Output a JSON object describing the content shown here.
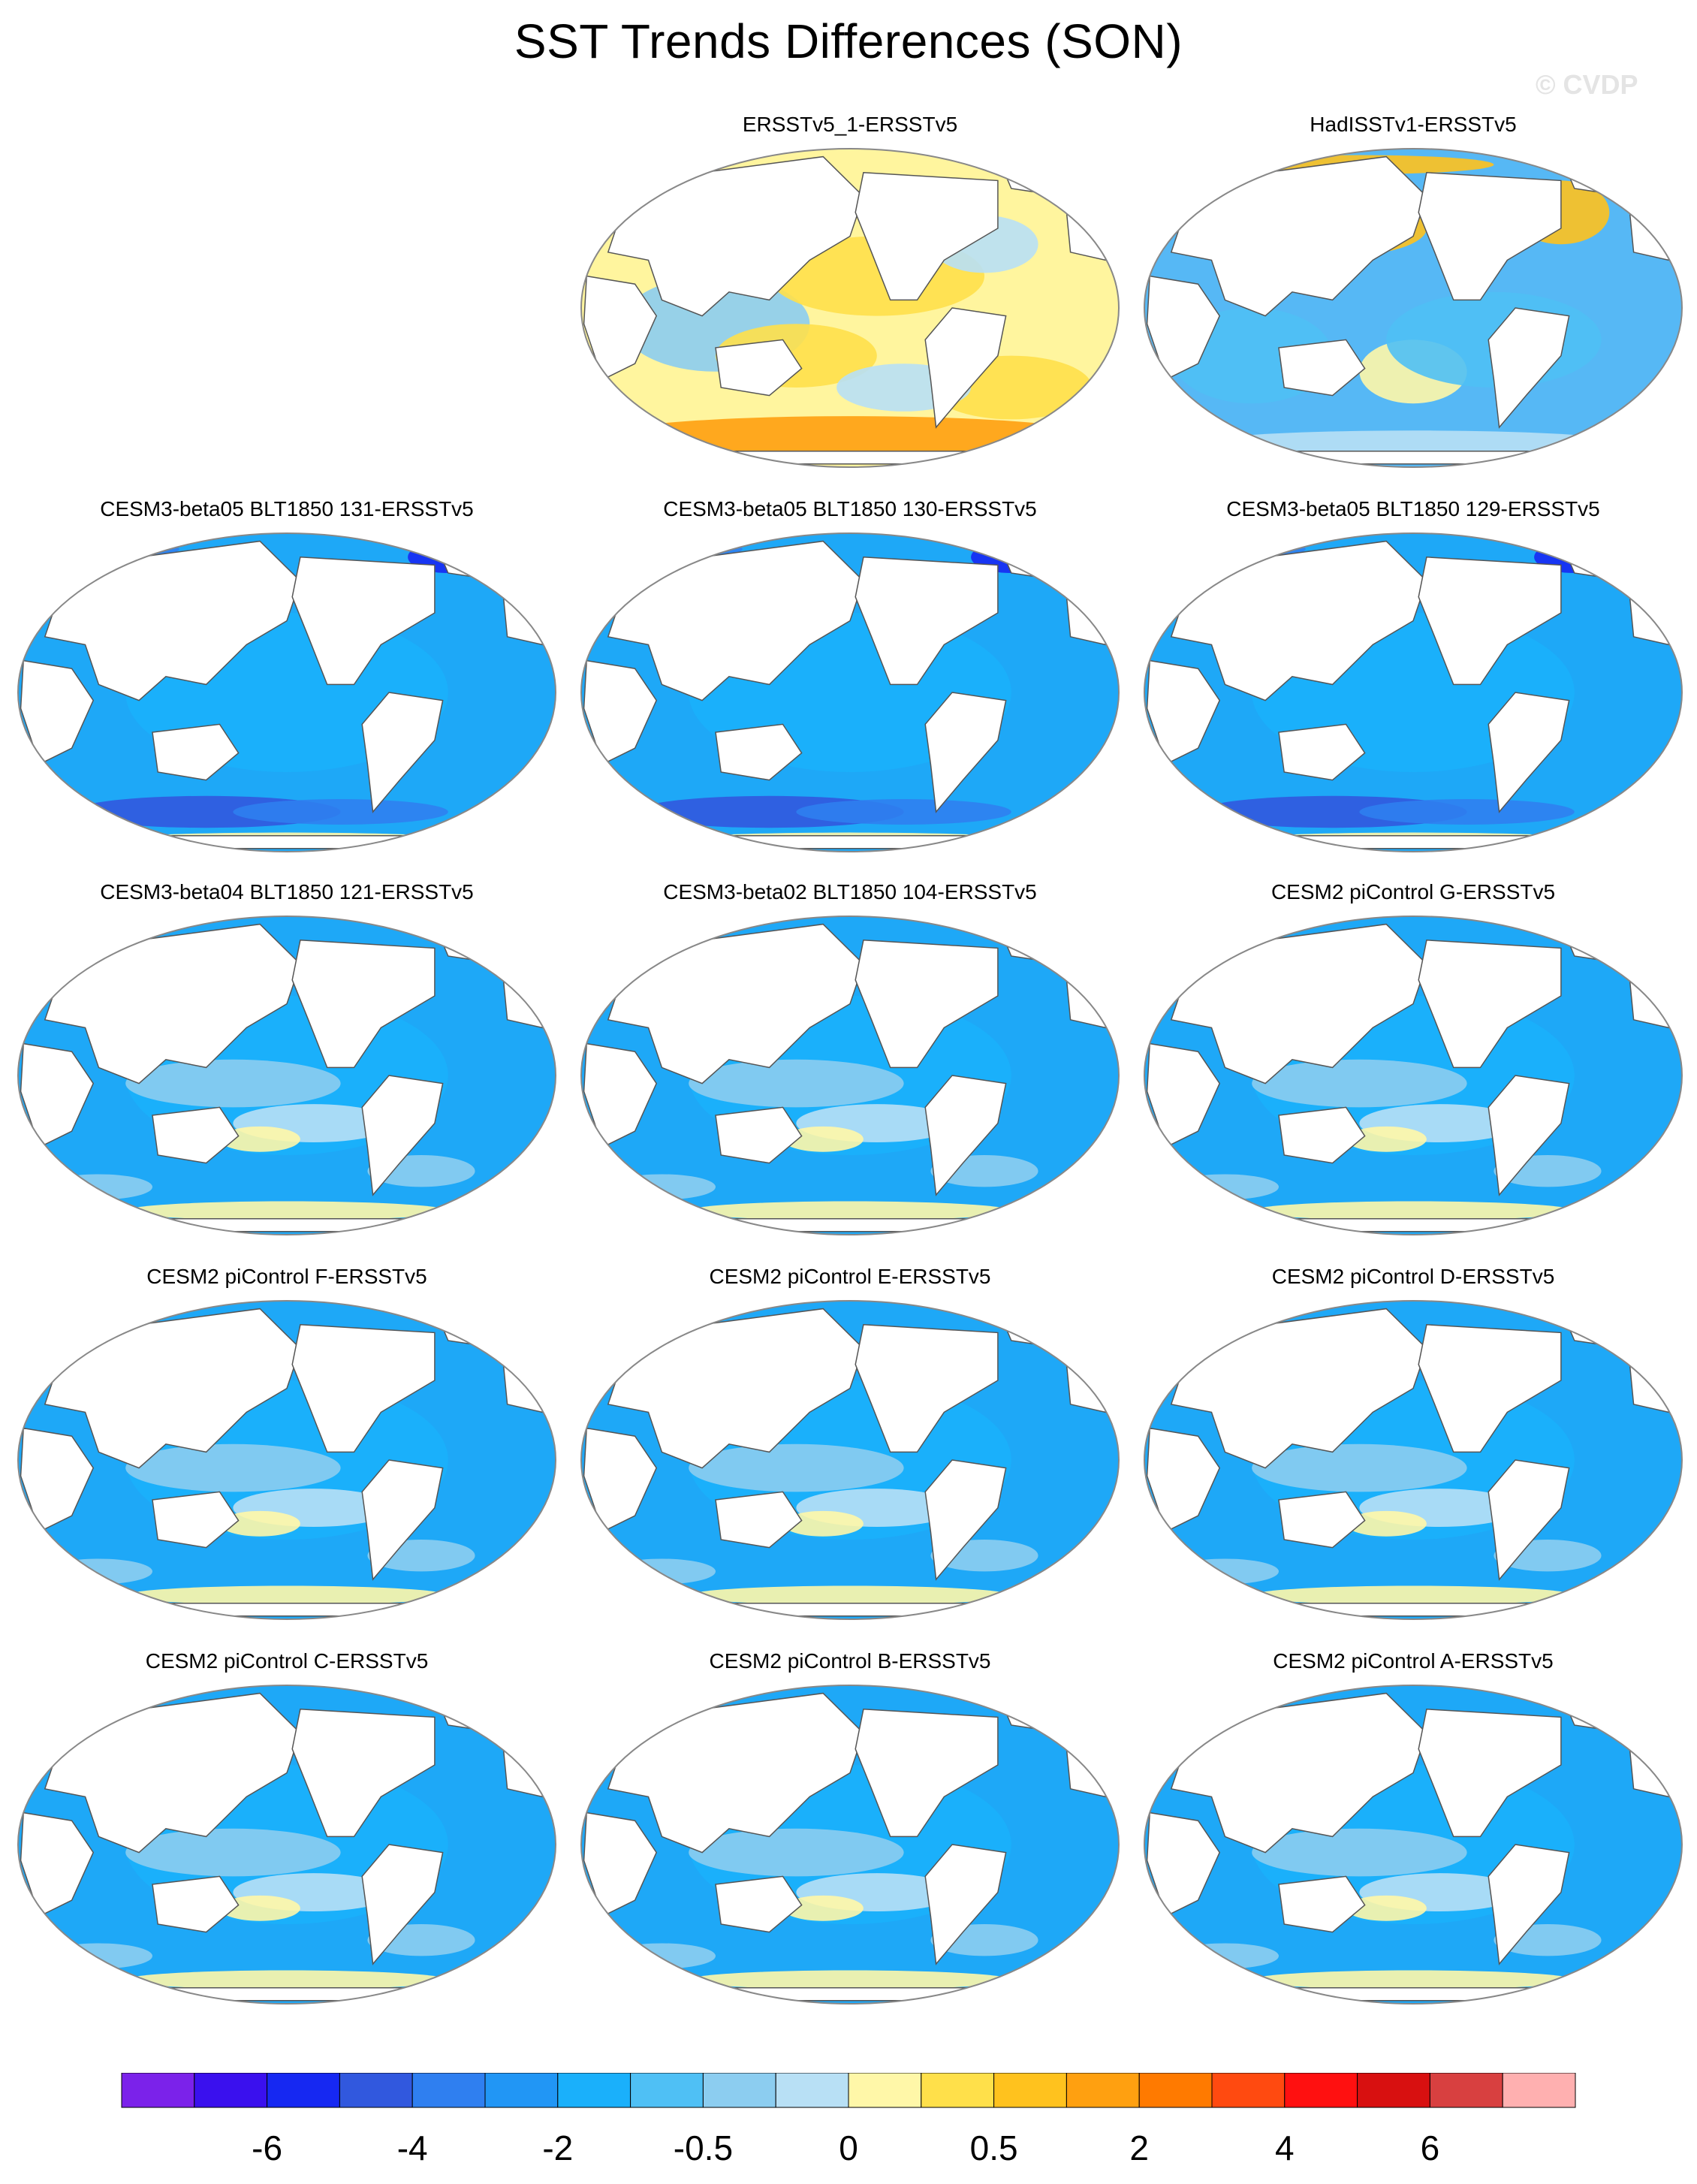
{
  "title": "SST Trends Differences (SON)",
  "watermark": "© CVDP",
  "colors": {
    "land": "#ffffff",
    "coast": "#555555",
    "outline": "#888888"
  },
  "panels": [
    {
      "title": "ERSSTv5_1-ERSSTv5",
      "base": "#fff59e",
      "pattern": "warm-yellow"
    },
    {
      "title": "HadISSTv1-ERSSTv5",
      "base": "#56b8f5",
      "pattern": "mixed"
    },
    {
      "title": "CESM3-beta05 BLT1850 131-ERSSTv5",
      "base": "#1ea8f7",
      "pattern": "cold"
    },
    {
      "title": "CESM3-beta05 BLT1850 130-ERSSTv5",
      "base": "#1ea8f7",
      "pattern": "cold"
    },
    {
      "title": "CESM3-beta05 BLT1850 129-ERSSTv5",
      "base": "#1ea8f7",
      "pattern": "cold"
    },
    {
      "title": "CESM3-beta04 BLT1850 121-ERSSTv5",
      "base": "#1ea8f7",
      "pattern": "cool"
    },
    {
      "title": "CESM3-beta02 BLT1850 104-ERSSTv5",
      "base": "#1ea8f7",
      "pattern": "cool"
    },
    {
      "title": "CESM2 piControl G-ERSSTv5",
      "base": "#1ea8f7",
      "pattern": "cool"
    },
    {
      "title": "CESM2 piControl F-ERSSTv5",
      "base": "#1ea8f7",
      "pattern": "cool"
    },
    {
      "title": "CESM2 piControl E-ERSSTv5",
      "base": "#1ea8f7",
      "pattern": "cool"
    },
    {
      "title": "CESM2 piControl D-ERSSTv5",
      "base": "#1ea8f7",
      "pattern": "cool"
    },
    {
      "title": "CESM2 piControl C-ERSSTv5",
      "base": "#1ea8f7",
      "pattern": "cool"
    },
    {
      "title": "CESM2 piControl B-ERSSTv5",
      "base": "#1ea8f7",
      "pattern": "cool"
    },
    {
      "title": "CESM2 piControl A-ERSSTv5",
      "base": "#1ea8f7",
      "pattern": "cool"
    }
  ],
  "colorbar": {
    "colors": [
      "#7b22ea",
      "#3a10ee",
      "#1628f2",
      "#3158de",
      "#2f7ff0",
      "#2196f5",
      "#1ab0fb",
      "#4fc0f5",
      "#8ccdf0",
      "#b8e0f5",
      "#fff7a8",
      "#ffe04a",
      "#ffc21e",
      "#ffa010",
      "#ff7a00",
      "#ff4a10",
      "#ff1010",
      "#d81010",
      "#d84040",
      "#ffb0b0"
    ],
    "labels": [
      "-6",
      "-4",
      "-2",
      "-0.5",
      "0",
      "0.5",
      "2",
      "4",
      "6"
    ]
  }
}
